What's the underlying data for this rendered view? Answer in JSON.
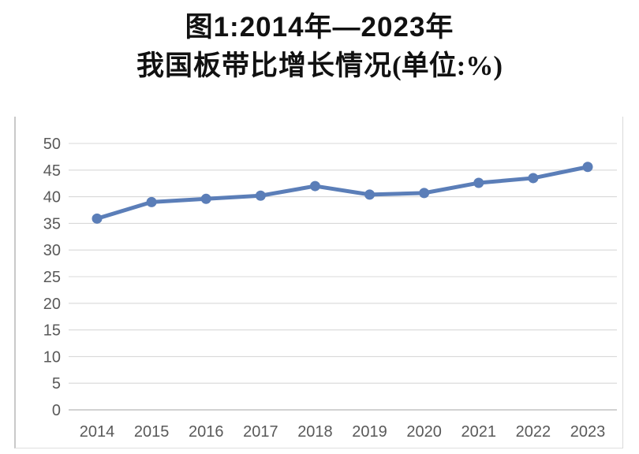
{
  "page": {
    "background": "#ffffff"
  },
  "title": {
    "line1": "图1:2014年—2023年",
    "line2_main": "我国板带比增长情况",
    "line2_unit": "(单位:%)"
  },
  "chart_data": {
    "type": "line",
    "title": "图1:2014年—2023年我国板带比增长情况",
    "unit": "%",
    "categories": [
      "2014",
      "2015",
      "2016",
      "2017",
      "2018",
      "2019",
      "2020",
      "2021",
      "2022",
      "2023"
    ],
    "series": [
      {
        "name": "板带比",
        "values": [
          35.9,
          39.0,
          39.6,
          40.2,
          42.0,
          40.4,
          40.7,
          42.6,
          43.5,
          45.6
        ]
      }
    ],
    "xlabel": "",
    "ylabel": "",
    "ylim": [
      0,
      50
    ],
    "yticks": [
      0,
      5,
      10,
      15,
      20,
      25,
      30,
      35,
      40,
      45,
      50
    ],
    "grid": true,
    "legend": "none",
    "marker": "circle",
    "colors": {
      "line": "#5b7eb8",
      "grid": "#d9d9d9",
      "axis": "#c3c3c3",
      "tick_label": "#595959",
      "title": "#111111"
    }
  }
}
